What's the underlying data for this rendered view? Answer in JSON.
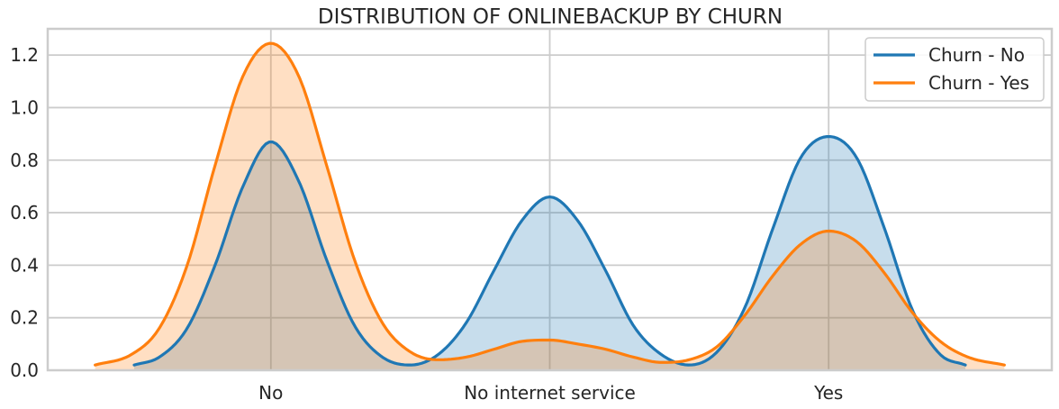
{
  "chart_data": {
    "type": "area",
    "title": "DISTRIBUTION OF ONLINEBACKUP BY CHURN",
    "xlabel": "",
    "ylabel": "",
    "categories": [
      "No",
      "No internet service",
      "Yes"
    ],
    "category_positions": [
      0,
      1,
      2
    ],
    "xlim": [
      -0.8,
      2.8
    ],
    "ylim": [
      0,
      1.3
    ],
    "yticks": [
      0.0,
      0.2,
      0.4,
      0.6,
      0.8,
      1.0,
      1.2
    ],
    "grid": true,
    "legend": "top-right",
    "series": [
      {
        "name": "Churn - No",
        "color": "#1f77b4",
        "fill_color": "#1f77b4",
        "domain": [
          -0.49,
          2.49
        ],
        "x": [
          -0.49,
          -0.4,
          -0.3,
          -0.2,
          -0.1,
          0.0,
          0.1,
          0.2,
          0.3,
          0.4,
          0.5,
          0.6,
          0.7,
          0.8,
          0.9,
          1.0,
          1.1,
          1.2,
          1.3,
          1.4,
          1.5,
          1.6,
          1.7,
          1.8,
          1.9,
          2.0,
          2.1,
          2.2,
          2.3,
          2.4,
          2.49
        ],
        "values": [
          0.02,
          0.05,
          0.16,
          0.4,
          0.7,
          0.87,
          0.72,
          0.42,
          0.17,
          0.05,
          0.02,
          0.06,
          0.18,
          0.38,
          0.57,
          0.66,
          0.57,
          0.38,
          0.17,
          0.06,
          0.02,
          0.07,
          0.24,
          0.54,
          0.81,
          0.89,
          0.81,
          0.54,
          0.23,
          0.06,
          0.02
        ]
      },
      {
        "name": "Churn - Yes",
        "color": "#ff7f0e",
        "fill_color": "#ff7f0e",
        "domain": [
          -0.63,
          2.63
        ],
        "x": [
          -0.63,
          -0.5,
          -0.4,
          -0.3,
          -0.2,
          -0.1,
          0.0,
          0.1,
          0.2,
          0.3,
          0.4,
          0.5,
          0.6,
          0.7,
          0.8,
          0.9,
          1.0,
          1.1,
          1.2,
          1.3,
          1.4,
          1.5,
          1.6,
          1.7,
          1.8,
          1.9,
          2.0,
          2.1,
          2.2,
          2.3,
          2.4,
          2.5,
          2.63
        ],
        "values": [
          0.02,
          0.06,
          0.16,
          0.4,
          0.78,
          1.12,
          1.245,
          1.12,
          0.78,
          0.42,
          0.18,
          0.07,
          0.04,
          0.05,
          0.08,
          0.11,
          0.115,
          0.1,
          0.08,
          0.05,
          0.03,
          0.04,
          0.09,
          0.21,
          0.36,
          0.48,
          0.53,
          0.49,
          0.37,
          0.22,
          0.11,
          0.05,
          0.02
        ]
      }
    ]
  }
}
